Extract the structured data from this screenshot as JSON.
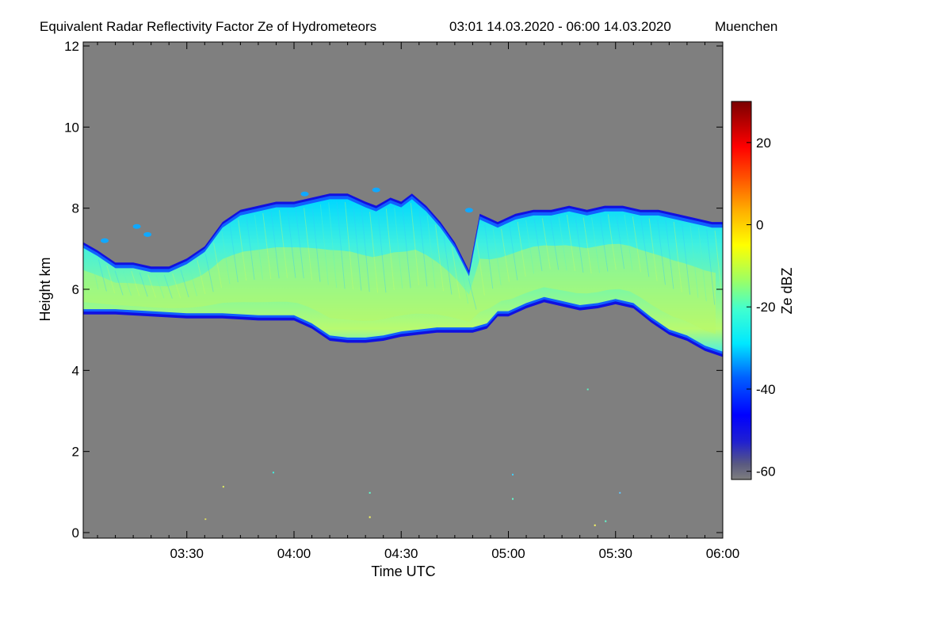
{
  "chart_data": {
    "type": "heatmap",
    "title": "Equivalent Radar Reflectivity Factor Ze of Hydrometeors",
    "time_range": "03:01 14.03.2020 - 06:00 14.03.2020",
    "location": "Muenchen",
    "xlabel": "Time UTC",
    "ylabel": "Height km",
    "x_range_min": [
      181,
      360
    ],
    "xlim_label": [
      "03:01",
      "06:00"
    ],
    "ylim": [
      0,
      12
    ],
    "x_ticks": [
      {
        "min": 210,
        "label": "03:30"
      },
      {
        "min": 240,
        "label": "04:00"
      },
      {
        "min": 270,
        "label": "04:30"
      },
      {
        "min": 300,
        "label": "05:00"
      },
      {
        "min": 330,
        "label": "05:30"
      },
      {
        "min": 360,
        "label": "06:00"
      }
    ],
    "y_ticks": [
      {
        "value": 0,
        "label": "0"
      },
      {
        "value": 2,
        "label": "2"
      },
      {
        "value": 4,
        "label": "4"
      },
      {
        "value": 6,
        "label": "6"
      },
      {
        "value": 8,
        "label": "8"
      },
      {
        "value": 10,
        "label": "10"
      },
      {
        "value": 12,
        "label": "12"
      }
    ],
    "colorbar": {
      "label": "Ze dBZ",
      "range": [
        -62,
        30
      ],
      "ticks": [
        {
          "value": 20,
          "label": "20"
        },
        {
          "value": 0,
          "label": "0"
        },
        {
          "value": -20,
          "label": "-20"
        },
        {
          "value": -40,
          "label": "-40"
        },
        {
          "value": -60,
          "label": "-60"
        }
      ]
    },
    "background_color": "#7f7f7f",
    "cloud_layer": {
      "description_units": "time in minutes since 00:00 UTC, heights in km",
      "top": [
        [
          181,
          7.1
        ],
        [
          185,
          6.9
        ],
        [
          190,
          6.6
        ],
        [
          195,
          6.6
        ],
        [
          200,
          6.5
        ],
        [
          205,
          6.5
        ],
        [
          210,
          6.7
        ],
        [
          215,
          7.0
        ],
        [
          220,
          7.6
        ],
        [
          225,
          7.9
        ],
        [
          230,
          8.0
        ],
        [
          235,
          8.1
        ],
        [
          240,
          8.1
        ],
        [
          245,
          8.2
        ],
        [
          250,
          8.3
        ],
        [
          255,
          8.3
        ],
        [
          260,
          8.1
        ],
        [
          263,
          8.0
        ],
        [
          267,
          8.2
        ],
        [
          270,
          8.1
        ],
        [
          273,
          8.3
        ],
        [
          277,
          8.0
        ],
        [
          281,
          7.6
        ],
        [
          285,
          7.1
        ],
        [
          289,
          6.4
        ],
        [
          292,
          7.8
        ],
        [
          297,
          7.6
        ],
        [
          302,
          7.8
        ],
        [
          307,
          7.9
        ],
        [
          312,
          7.9
        ],
        [
          317,
          8.0
        ],
        [
          322,
          7.9
        ],
        [
          327,
          8.0
        ],
        [
          332,
          8.0
        ],
        [
          337,
          7.9
        ],
        [
          342,
          7.9
        ],
        [
          347,
          7.8
        ],
        [
          352,
          7.7
        ],
        [
          357,
          7.6
        ],
        [
          360,
          7.6
        ]
      ],
      "base": [
        [
          181,
          5.45
        ],
        [
          190,
          5.45
        ],
        [
          200,
          5.4
        ],
        [
          210,
          5.35
        ],
        [
          220,
          5.35
        ],
        [
          230,
          5.3
        ],
        [
          240,
          5.3
        ],
        [
          245,
          5.1
        ],
        [
          250,
          4.8
        ],
        [
          255,
          4.75
        ],
        [
          260,
          4.75
        ],
        [
          265,
          4.8
        ],
        [
          270,
          4.9
        ],
        [
          275,
          4.95
        ],
        [
          280,
          5.0
        ],
        [
          285,
          5.0
        ],
        [
          290,
          5.0
        ],
        [
          294,
          5.1
        ],
        [
          297,
          5.4
        ],
        [
          300,
          5.4
        ],
        [
          305,
          5.6
        ],
        [
          310,
          5.75
        ],
        [
          315,
          5.65
        ],
        [
          320,
          5.55
        ],
        [
          325,
          5.6
        ],
        [
          330,
          5.7
        ],
        [
          335,
          5.6
        ],
        [
          340,
          5.25
        ],
        [
          345,
          4.95
        ],
        [
          350,
          4.8
        ],
        [
          355,
          4.55
        ],
        [
          360,
          4.4
        ]
      ],
      "core_peak_dbz": -8,
      "edge_dbz": -40
    }
  }
}
